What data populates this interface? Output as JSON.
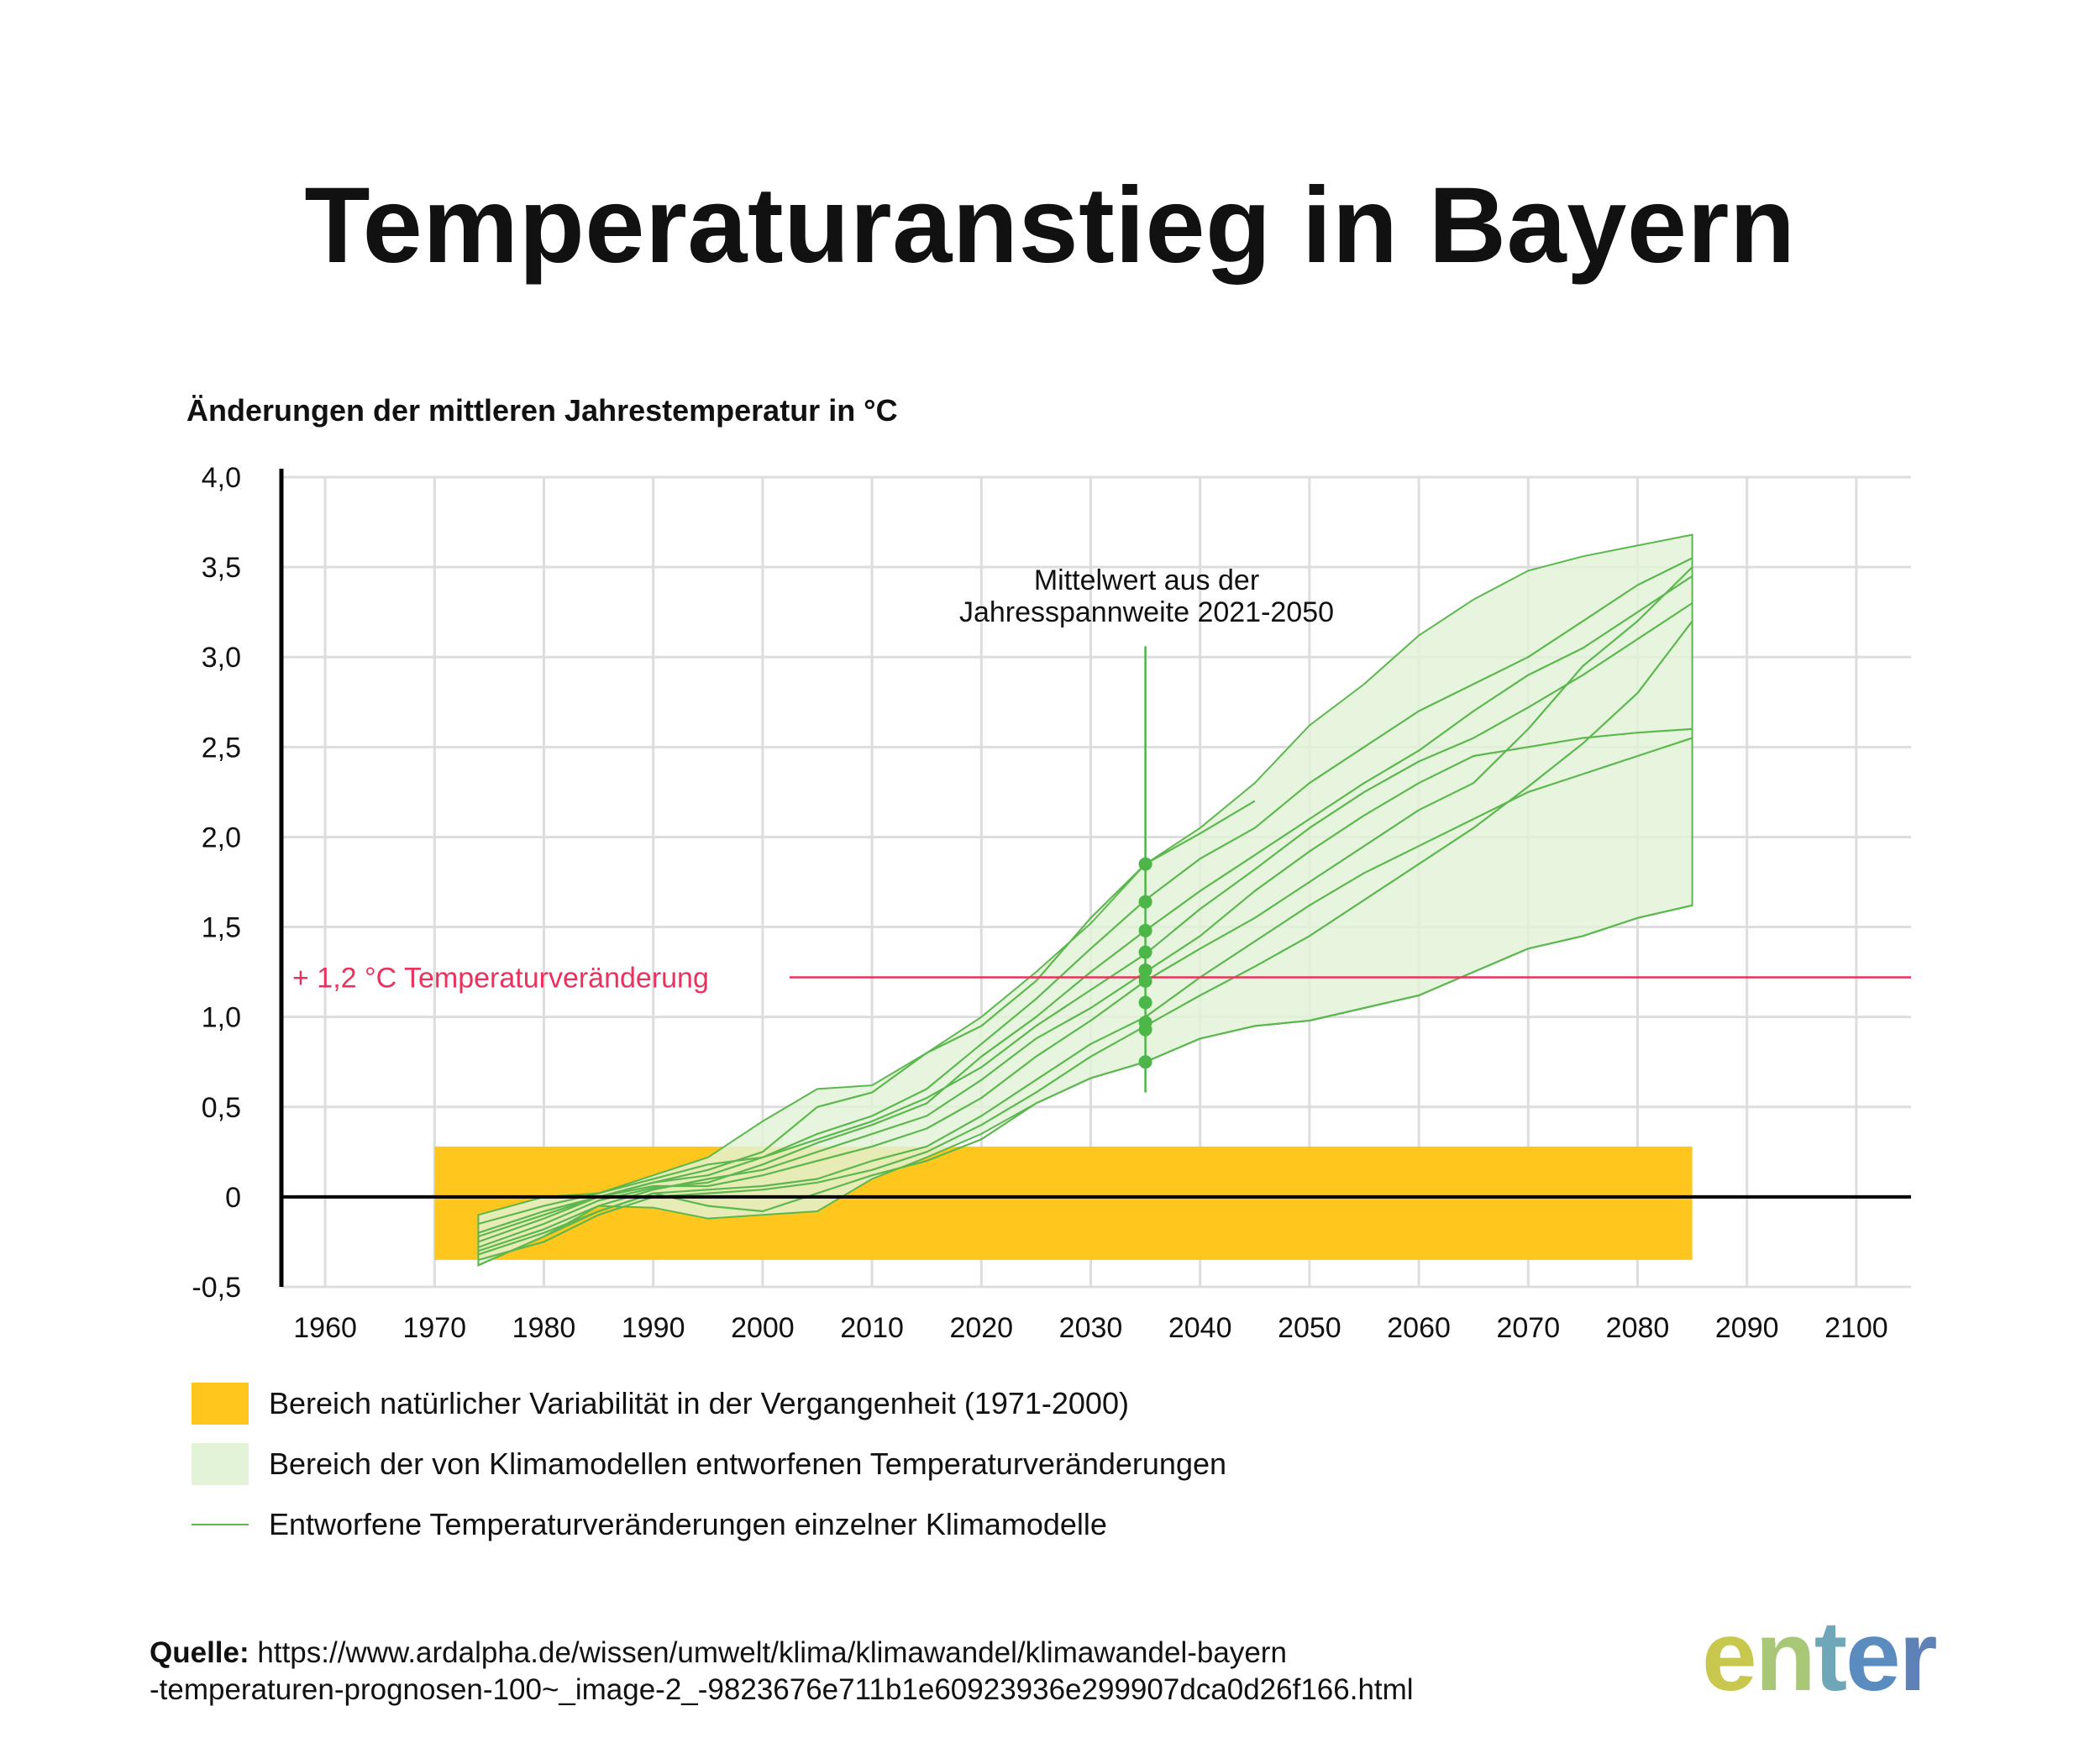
{
  "title": "Temperaturanstieg in Bayern",
  "subtitle": "Änderungen der mittleren Jahrestemperatur in °C",
  "chart_data": {
    "type": "line",
    "ylabel": "Änderungen der mittleren Jahrestemperatur in °C",
    "xlim": [
      1956,
      2105
    ],
    "ylim": [
      -0.5,
      4.0
    ],
    "x_ticks": [
      "1960",
      "1970",
      "1980",
      "1990",
      "2000",
      "2010",
      "2020",
      "2030",
      "2040",
      "2050",
      "2060",
      "2070",
      "2080",
      "2090",
      "2100"
    ],
    "y_ticks": [
      {
        "value": 4.0,
        "label": "4,0"
      },
      {
        "value": 3.5,
        "label": "3,5"
      },
      {
        "value": 3.0,
        "label": "3,0"
      },
      {
        "value": 2.5,
        "label": "2,5"
      },
      {
        "value": 2.0,
        "label": "2,0"
      },
      {
        "value": 1.5,
        "label": "1,5"
      },
      {
        "value": 1.0,
        "label": "1,0"
      },
      {
        "value": 0.5,
        "label": "0,5"
      },
      {
        "value": 0,
        "label": "0"
      },
      {
        "value": -0.5,
        "label": "-0,5"
      }
    ],
    "grid": true,
    "natural_variability_band": {
      "x": [
        1970,
        2085
      ],
      "y": [
        -0.35,
        0.28
      ],
      "color": "#FFC61E"
    },
    "model_range": {
      "color": "#E2F3D8",
      "upper": [
        [
          1974,
          -0.1
        ],
        [
          1980,
          0.0
        ],
        [
          1985,
          0.02
        ],
        [
          1990,
          0.12
        ],
        [
          1995,
          0.22
        ],
        [
          2000,
          0.42
        ],
        [
          2005,
          0.6
        ],
        [
          2010,
          0.62
        ],
        [
          2015,
          0.8
        ],
        [
          2020,
          1.0
        ],
        [
          2025,
          1.25
        ],
        [
          2030,
          1.52
        ],
        [
          2035,
          1.85
        ],
        [
          2040,
          2.05
        ],
        [
          2045,
          2.3
        ],
        [
          2050,
          2.62
        ],
        [
          2055,
          2.85
        ],
        [
          2060,
          3.12
        ],
        [
          2065,
          3.32
        ],
        [
          2070,
          3.48
        ],
        [
          2075,
          3.56
        ],
        [
          2080,
          3.62
        ],
        [
          2085,
          3.68
        ]
      ],
      "lower": [
        [
          2085,
          1.62
        ],
        [
          2080,
          1.55
        ],
        [
          2075,
          1.45
        ],
        [
          2070,
          1.38
        ],
        [
          2065,
          1.25
        ],
        [
          2060,
          1.12
        ],
        [
          2055,
          1.05
        ],
        [
          2050,
          0.98
        ],
        [
          2045,
          0.95
        ],
        [
          2040,
          0.88
        ],
        [
          2035,
          0.75
        ],
        [
          2030,
          0.66
        ],
        [
          2025,
          0.52
        ],
        [
          2020,
          0.35
        ],
        [
          2015,
          0.22
        ],
        [
          2010,
          0.1
        ],
        [
          2005,
          -0.08
        ],
        [
          2000,
          -0.1
        ],
        [
          1995,
          -0.12
        ],
        [
          1990,
          -0.06
        ],
        [
          1985,
          -0.05
        ],
        [
          1980,
          -0.22
        ],
        [
          1974,
          -0.38
        ]
      ]
    },
    "series": [
      {
        "values": [
          [
            1974,
            -0.2
          ],
          [
            1980,
            -0.08
          ],
          [
            1985,
            0.0
          ],
          [
            1990,
            0.08
          ],
          [
            1995,
            0.15
          ],
          [
            2000,
            0.25
          ],
          [
            2005,
            0.5
          ],
          [
            2010,
            0.58
          ],
          [
            2015,
            0.8
          ],
          [
            2020,
            0.95
          ],
          [
            2025,
            1.2
          ],
          [
            2030,
            1.55
          ],
          [
            2035,
            1.85
          ],
          [
            2040,
            2.02
          ],
          [
            2045,
            2.2
          ]
        ]
      },
      {
        "values": [
          [
            1974,
            -0.25
          ],
          [
            1980,
            -0.12
          ],
          [
            1985,
            0.0
          ],
          [
            1990,
            0.08
          ],
          [
            1995,
            0.12
          ],
          [
            2000,
            0.22
          ],
          [
            2005,
            0.35
          ],
          [
            2010,
            0.45
          ],
          [
            2015,
            0.6
          ],
          [
            2020,
            0.85
          ],
          [
            2025,
            1.1
          ],
          [
            2030,
            1.38
          ],
          [
            2035,
            1.65
          ],
          [
            2040,
            1.88
          ],
          [
            2045,
            2.05
          ],
          [
            2050,
            2.3
          ],
          [
            2055,
            2.5
          ],
          [
            2060,
            2.7
          ],
          [
            2065,
            2.85
          ],
          [
            2070,
            3.0
          ],
          [
            2075,
            3.2
          ],
          [
            2080,
            3.4
          ],
          [
            2085,
            3.55
          ]
        ]
      },
      {
        "values": [
          [
            1974,
            -0.28
          ],
          [
            1980,
            -0.15
          ],
          [
            1985,
            -0.02
          ],
          [
            1990,
            0.05
          ],
          [
            1995,
            0.08
          ],
          [
            2000,
            0.18
          ],
          [
            2005,
            0.3
          ],
          [
            2010,
            0.4
          ],
          [
            2015,
            0.52
          ],
          [
            2020,
            0.78
          ],
          [
            2025,
            1.0
          ],
          [
            2030,
            1.25
          ],
          [
            2035,
            1.48
          ],
          [
            2040,
            1.7
          ],
          [
            2045,
            1.9
          ],
          [
            2050,
            2.1
          ],
          [
            2055,
            2.3
          ],
          [
            2060,
            2.48
          ],
          [
            2065,
            2.7
          ],
          [
            2070,
            2.9
          ],
          [
            2075,
            3.05
          ],
          [
            2080,
            3.25
          ],
          [
            2085,
            3.45
          ]
        ]
      },
      {
        "values": [
          [
            1974,
            -0.15
          ],
          [
            1980,
            -0.05
          ],
          [
            1985,
            0.02
          ],
          [
            1990,
            0.1
          ],
          [
            1995,
            0.18
          ],
          [
            2000,
            0.22
          ],
          [
            2005,
            0.32
          ],
          [
            2010,
            0.42
          ],
          [
            2015,
            0.55
          ],
          [
            2020,
            0.72
          ],
          [
            2025,
            0.95
          ],
          [
            2030,
            1.15
          ],
          [
            2035,
            1.35
          ],
          [
            2040,
            1.6
          ],
          [
            2045,
            1.82
          ],
          [
            2050,
            2.05
          ],
          [
            2055,
            2.25
          ],
          [
            2060,
            2.42
          ],
          [
            2065,
            2.55
          ],
          [
            2070,
            2.72
          ],
          [
            2075,
            2.9
          ],
          [
            2080,
            3.1
          ],
          [
            2085,
            3.3
          ]
        ]
      },
      {
        "values": [
          [
            1974,
            -0.3
          ],
          [
            1980,
            -0.18
          ],
          [
            1985,
            -0.05
          ],
          [
            1990,
            0.04
          ],
          [
            1995,
            0.1
          ],
          [
            2000,
            0.15
          ],
          [
            2005,
            0.25
          ],
          [
            2010,
            0.35
          ],
          [
            2015,
            0.45
          ],
          [
            2020,
            0.65
          ],
          [
            2025,
            0.88
          ],
          [
            2030,
            1.05
          ],
          [
            2035,
            1.25
          ],
          [
            2040,
            1.45
          ],
          [
            2045,
            1.7
          ],
          [
            2050,
            1.92
          ],
          [
            2055,
            2.12
          ],
          [
            2060,
            2.3
          ],
          [
            2065,
            2.45
          ],
          [
            2070,
            2.5
          ],
          [
            2075,
            2.55
          ],
          [
            2080,
            2.58
          ],
          [
            2085,
            2.6
          ]
        ]
      },
      {
        "values": [
          [
            1974,
            -0.22
          ],
          [
            1980,
            -0.1
          ],
          [
            1985,
            0.0
          ],
          [
            1990,
            0.06
          ],
          [
            1995,
            0.06
          ],
          [
            2000,
            0.12
          ],
          [
            2005,
            0.2
          ],
          [
            2010,
            0.28
          ],
          [
            2015,
            0.38
          ],
          [
            2020,
            0.55
          ],
          [
            2025,
            0.78
          ],
          [
            2030,
            0.98
          ],
          [
            2035,
            1.2
          ],
          [
            2040,
            1.38
          ],
          [
            2045,
            1.55
          ],
          [
            2050,
            1.75
          ],
          [
            2055,
            1.95
          ],
          [
            2060,
            2.15
          ],
          [
            2065,
            2.3
          ],
          [
            2070,
            2.6
          ],
          [
            2075,
            2.95
          ],
          [
            2080,
            3.2
          ],
          [
            2085,
            3.5
          ]
        ]
      },
      {
        "values": [
          [
            1974,
            -0.32
          ],
          [
            1980,
            -0.2
          ],
          [
            1985,
            -0.08
          ],
          [
            1990,
            0.02
          ],
          [
            1995,
            0.04
          ],
          [
            2000,
            0.06
          ],
          [
            2005,
            0.1
          ],
          [
            2010,
            0.2
          ],
          [
            2015,
            0.28
          ],
          [
            2020,
            0.45
          ],
          [
            2025,
            0.65
          ],
          [
            2030,
            0.85
          ],
          [
            2035,
            1.0
          ],
          [
            2040,
            1.22
          ],
          [
            2045,
            1.42
          ],
          [
            2050,
            1.62
          ],
          [
            2055,
            1.8
          ],
          [
            2060,
            1.95
          ],
          [
            2065,
            2.1
          ],
          [
            2070,
            2.25
          ],
          [
            2075,
            2.35
          ],
          [
            2080,
            2.45
          ],
          [
            2085,
            2.55
          ]
        ]
      },
      {
        "values": [
          [
            1974,
            -0.38
          ],
          [
            1980,
            -0.22
          ],
          [
            1985,
            -0.08
          ],
          [
            1990,
            0.02
          ],
          [
            1995,
            -0.05
          ],
          [
            2000,
            -0.08
          ],
          [
            2005,
            0.02
          ],
          [
            2010,
            0.12
          ],
          [
            2015,
            0.2
          ],
          [
            2020,
            0.32
          ],
          [
            2025,
            0.52
          ],
          [
            2030,
            0.66
          ],
          [
            2035,
            0.75
          ],
          [
            2040,
            0.88
          ],
          [
            2045,
            0.95
          ],
          [
            2050,
            0.98
          ],
          [
            2055,
            1.05
          ],
          [
            2060,
            1.12
          ],
          [
            2065,
            1.25
          ],
          [
            2070,
            1.38
          ],
          [
            2075,
            1.45
          ],
          [
            2080,
            1.55
          ],
          [
            2085,
            1.62
          ]
        ]
      },
      {
        "values": [
          [
            1974,
            -0.35
          ],
          [
            1980,
            -0.25
          ],
          [
            1985,
            -0.1
          ],
          [
            1990,
            0.0
          ],
          [
            1995,
            0.02
          ],
          [
            2000,
            0.04
          ],
          [
            2005,
            0.08
          ],
          [
            2010,
            0.15
          ],
          [
            2015,
            0.25
          ],
          [
            2020,
            0.4
          ],
          [
            2025,
            0.58
          ],
          [
            2030,
            0.78
          ],
          [
            2035,
            0.95
          ],
          [
            2040,
            1.12
          ],
          [
            2045,
            1.28
          ],
          [
            2050,
            1.45
          ],
          [
            2055,
            1.65
          ],
          [
            2060,
            1.85
          ],
          [
            2065,
            2.05
          ],
          [
            2070,
            2.28
          ],
          [
            2075,
            2.52
          ],
          [
            2080,
            2.8
          ],
          [
            2085,
            3.2
          ]
        ]
      }
    ],
    "mean_2021_2050": {
      "x": 2035,
      "values": [
        1.85,
        1.64,
        1.48,
        1.36,
        1.26,
        1.2,
        1.08,
        0.97,
        0.93,
        0.75
      ],
      "line_top": 3.06,
      "line_bottom": 0.58,
      "annotation": [
        "Mittelwert aus der",
        "Jahresspannweite 2021-2050"
      ]
    },
    "reference_line": {
      "y": 1.22,
      "label": "+ 1,2 °C Temperaturveränderung",
      "color": "#E8335F"
    },
    "colors": {
      "line": "#5CB84E",
      "dot": "#4CB648",
      "range": "#E2F3D8",
      "band": "#FFC61E",
      "grid": "#DDDDDD",
      "axis": "#000000"
    }
  },
  "legend": [
    {
      "swatch": "band",
      "label": "Bereich natürlicher Variabilität in der Vergangenheit (1971-2000)"
    },
    {
      "swatch": "range",
      "label": "Bereich der von Klimamodellen entworfenen Temperaturveränderungen"
    },
    {
      "swatch": "line",
      "label": "Entworfene Temperaturveränderungen einzelner Klimamodelle"
    }
  ],
  "source": {
    "label": "Quelle:",
    "line1": "https://www.ardalpha.de/wissen/umwelt/klima/klimawandel/klimawandel-bayern",
    "line2": "-temperaturen-prognosen-100~_image-2_-9823676e711b1e60923936e299907dca0d26f166.html"
  },
  "logo": {
    "text": "enter",
    "colors": [
      "#C8C84E",
      "#A8C878",
      "#6FA6B8",
      "#5B8CC0",
      "#5E82B8"
    ]
  }
}
